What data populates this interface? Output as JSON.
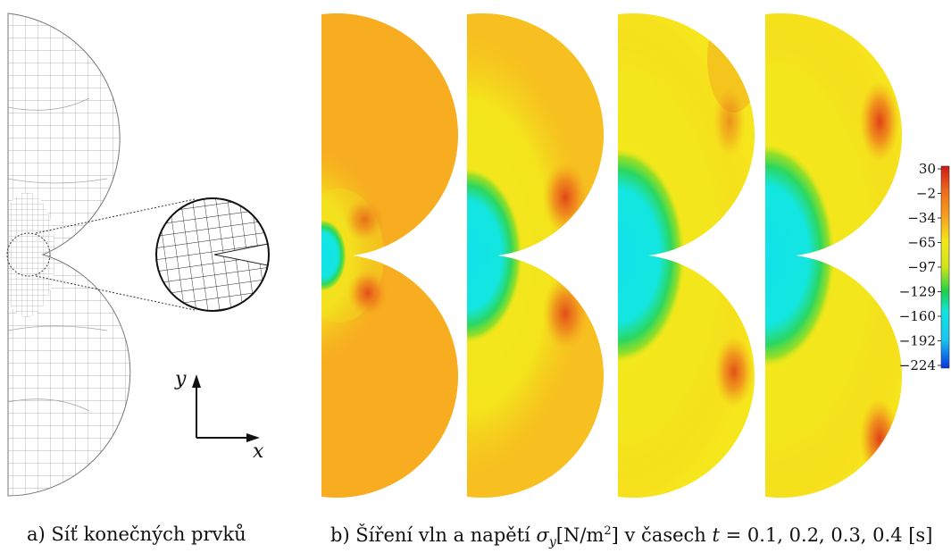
{
  "figure": {
    "panel_a": {
      "caption": "a) Síť konečných prvků",
      "axis_labels": {
        "y": "y",
        "x": "x"
      }
    },
    "panel_b": {
      "caption_prefix": "b) Šíření vln a napětí ",
      "caption_symbol": "σ",
      "caption_subscript": "y",
      "caption_units_open": "[N/m",
      "caption_units_sup": "2",
      "caption_units_close": "]",
      "caption_middle": " v časech ",
      "caption_t": "t",
      "caption_times": " = 0.1, 0.2, 0.3, 0.4 [s]",
      "times": [
        0.1,
        0.2,
        0.3,
        0.4
      ],
      "colorbar": {
        "ticks": [
          "30",
          "−2",
          "−34",
          "−65",
          "−97",
          "−129",
          "−160",
          "−192",
          "−224"
        ],
        "max": 30,
        "min": -224,
        "colors_top_to_bottom": [
          "#cc1a14",
          "#ee6a1c",
          "#f7a21c",
          "#f4e61a",
          "#cfe41a",
          "#1fd048",
          "#11e4e0",
          "#18c6f0",
          "#0a34e0"
        ]
      },
      "field_colors": {
        "background": "#f7ad1f",
        "early_region": "#f5e11f",
        "hot_spot": "#e24a1b",
        "cold_core": "#11e4e0",
        "green_ring": "#34d24a"
      }
    }
  }
}
